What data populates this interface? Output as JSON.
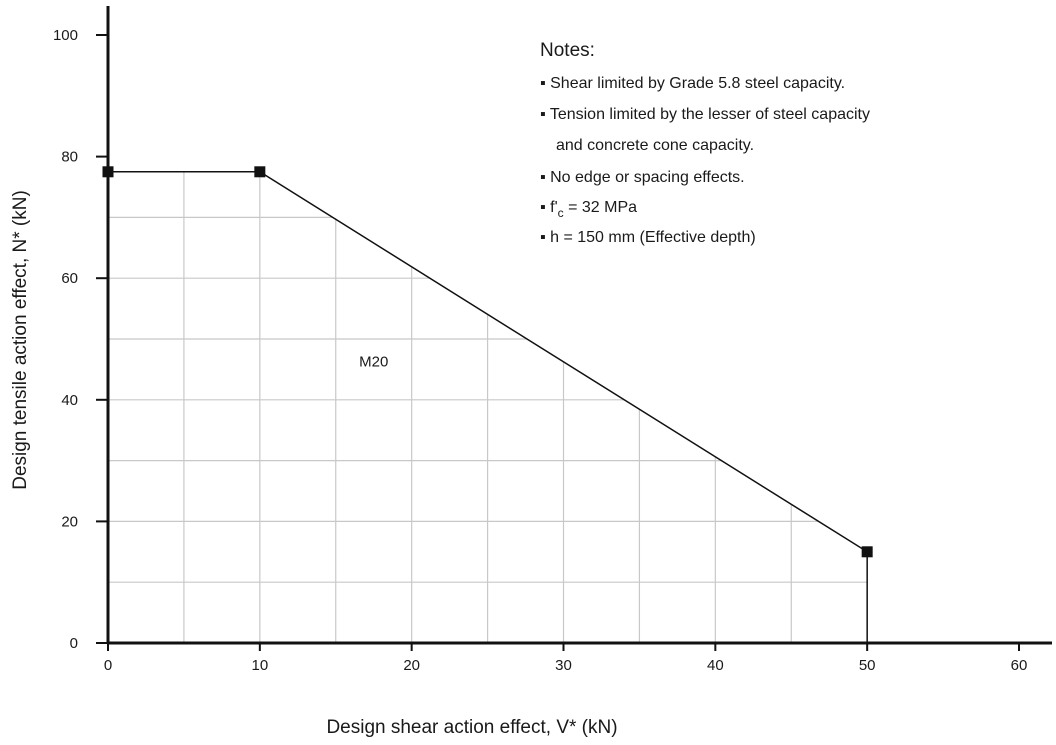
{
  "chart_data": {
    "type": "line",
    "xlabel": "Design shear action effect, V* (kN)",
    "ylabel": "Design tensile action effect, N* (kN)",
    "xlim": [
      0,
      60
    ],
    "ylim": [
      0,
      100
    ],
    "x_ticks": [
      "0",
      "10",
      "20",
      "30",
      "40",
      "50",
      "60"
    ],
    "y_ticks": [
      "0",
      "20",
      "40",
      "60",
      "80",
      "100"
    ],
    "grid": true,
    "grid_region": "under-curve",
    "series": [
      {
        "name": "M20",
        "x": [
          0,
          10,
          50,
          50
        ],
        "y": [
          77.5,
          77.5,
          15,
          0
        ],
        "markers": [
          [
            0,
            77.5
          ],
          [
            10,
            77.5
          ],
          [
            50,
            15
          ]
        ]
      }
    ],
    "annotations": [
      {
        "text": "M20",
        "x": 17.5,
        "y": 45.5
      }
    ],
    "notes": {
      "title": "Notes:",
      "items": [
        "Shear limited by Grade 5.8 steel capacity.",
        "Tension limited by the lesser of steel capacity",
        "and concrete cone capacity.",
        "No edge or spacing effects.",
        "= 32 MPa",
        "h = 150 mm (Effective depth)"
      ],
      "fc_symbol": "f'",
      "fc_subscript": "c"
    }
  }
}
